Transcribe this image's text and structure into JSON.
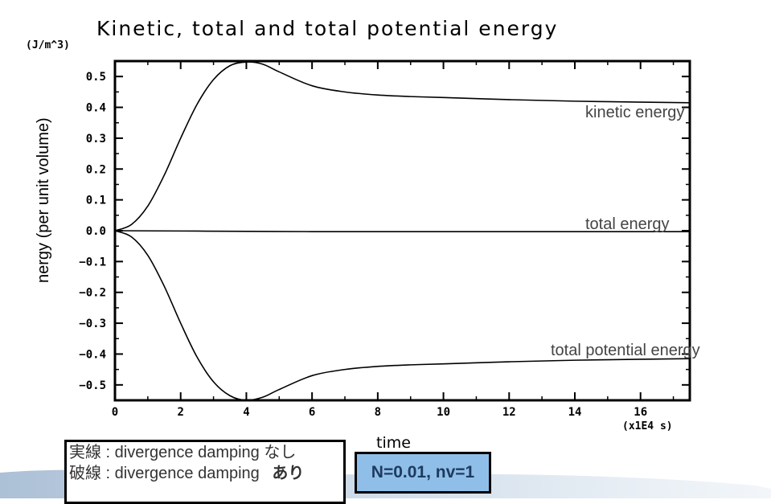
{
  "chart_data": {
    "type": "line",
    "title": "Kinetic, total and total potential energy",
    "ylabel": "nergy (per unit volume)",
    "y_unit": "(J/m^3)",
    "xlabel": "time",
    "x_unit": "(x1E4 s)",
    "xlim": [
      0,
      17.5
    ],
    "ylim": [
      -0.55,
      0.55
    ],
    "x_ticks": [
      0,
      2,
      4,
      6,
      8,
      10,
      12,
      14,
      16
    ],
    "y_ticks": [
      0.5,
      0.4,
      0.3,
      0.2,
      0.1,
      0.0,
      -0.1,
      -0.2,
      -0.3,
      -0.4,
      -0.5
    ],
    "y_tick_labels": [
      "0.5",
      "0.4",
      "0.3",
      "0.2",
      "0.1",
      "0.0",
      "−0.1",
      "−0.2",
      "−0.3",
      "−0.4",
      "−0.5"
    ],
    "grid": false,
    "series": [
      {
        "name": "kinetic energy",
        "x": [
          0,
          0.5,
          1,
          1.5,
          2,
          2.5,
          3,
          3.5,
          4,
          4.5,
          5,
          6,
          7,
          8,
          9,
          10,
          12,
          14,
          16,
          17.5
        ],
        "y": [
          0,
          0.02,
          0.08,
          0.18,
          0.3,
          0.41,
          0.49,
          0.535,
          0.547,
          0.54,
          0.515,
          0.47,
          0.45,
          0.44,
          0.435,
          0.432,
          0.425,
          0.42,
          0.417,
          0.415
        ]
      },
      {
        "name": "total energy",
        "x": [
          0,
          2,
          4,
          6,
          8,
          10,
          12,
          14,
          16,
          17.5
        ],
        "y": [
          0,
          -0.001,
          -0.002,
          -0.003,
          -0.003,
          -0.003,
          -0.003,
          -0.003,
          -0.003,
          -0.003
        ]
      },
      {
        "name": "total potential energy",
        "x": [
          0,
          0.5,
          1,
          1.5,
          2,
          2.5,
          3,
          3.5,
          4,
          4.5,
          5,
          6,
          7,
          8,
          9,
          10,
          12,
          14,
          16,
          17.5
        ],
        "y": [
          0,
          -0.02,
          -0.08,
          -0.18,
          -0.3,
          -0.41,
          -0.49,
          -0.535,
          -0.55,
          -0.54,
          -0.515,
          -0.47,
          -0.45,
          -0.44,
          -0.435,
          -0.432,
          -0.425,
          -0.42,
          -0.417,
          -0.415
        ]
      }
    ]
  },
  "caption": {
    "line1_prefix": "実線 : divergence damping",
    "line1_suffix": "なし",
    "line2_prefix": "破線 : divergence damping",
    "line2_suffix": "あり"
  },
  "params": "N=0.01, nv=1"
}
